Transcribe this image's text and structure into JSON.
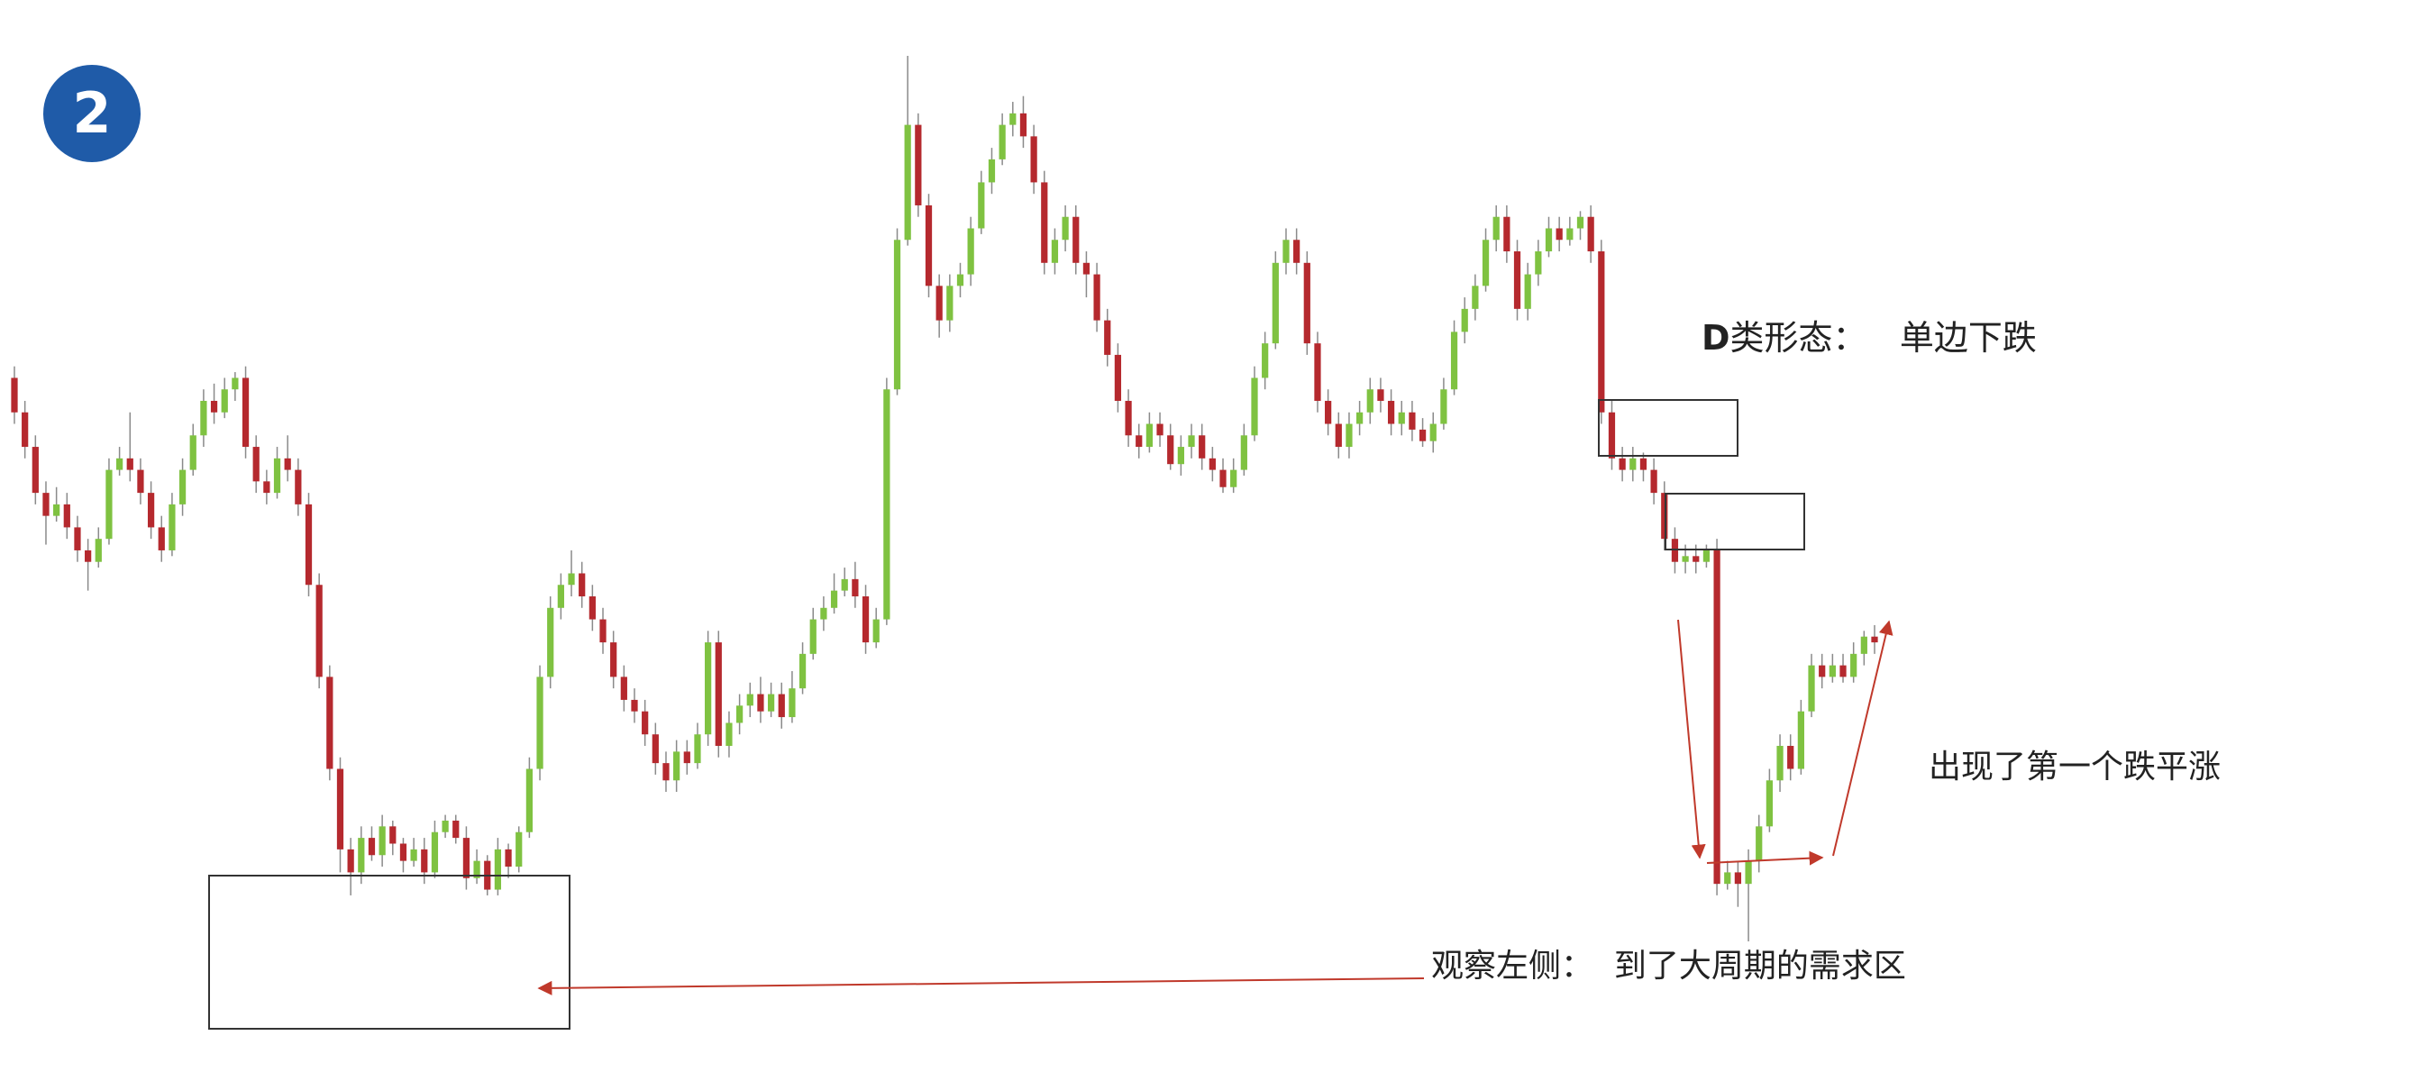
{
  "badge": "2",
  "annotations": {
    "pattern_type_prefix": "D",
    "pattern_type_rest": "类形态：",
    "pattern_name": "单边下跌",
    "first_signal": "出现了第一个跌平涨",
    "observe_left": "观察左侧：",
    "demand_zone": "到了大周期的需求区"
  },
  "colors": {
    "bull": "#7fc241",
    "bear": "#b5292e",
    "box": "#333333",
    "arrow": "#c0392b",
    "badge": "#1f5ba8"
  },
  "chart_data": {
    "type": "candlestick",
    "x_axis": "none",
    "y_axis": "none",
    "grid": false,
    "ohlc": [
      [
        92,
        86,
        94,
        84
      ],
      [
        86,
        80,
        88,
        78
      ],
      [
        80,
        72,
        82,
        70
      ],
      [
        72,
        68,
        74,
        63
      ],
      [
        68,
        70,
        73,
        67
      ],
      [
        70,
        66,
        72,
        64
      ],
      [
        66,
        62,
        68,
        60
      ],
      [
        62,
        60,
        64,
        55
      ],
      [
        60,
        64,
        66,
        59
      ],
      [
        64,
        76,
        78,
        63
      ],
      [
        76,
        78,
        80,
        75
      ],
      [
        78,
        76,
        86,
        74
      ],
      [
        76,
        72,
        78,
        70
      ],
      [
        72,
        66,
        74,
        64
      ],
      [
        66,
        62,
        68,
        60
      ],
      [
        62,
        70,
        72,
        61
      ],
      [
        70,
        76,
        78,
        68
      ],
      [
        76,
        82,
        84,
        75
      ],
      [
        82,
        88,
        90,
        80
      ],
      [
        88,
        86,
        91,
        84
      ],
      [
        86,
        90,
        92,
        85
      ],
      [
        90,
        92,
        93,
        88
      ],
      [
        92,
        80,
        94,
        78
      ],
      [
        80,
        74,
        82,
        72
      ],
      [
        74,
        72,
        76,
        70
      ],
      [
        72,
        78,
        80,
        71
      ],
      [
        78,
        76,
        82,
        74
      ],
      [
        76,
        70,
        78,
        68
      ],
      [
        70,
        56,
        72,
        54
      ],
      [
        56,
        40,
        58,
        38
      ],
      [
        40,
        24,
        42,
        22
      ],
      [
        24,
        10,
        26,
        6
      ],
      [
        10,
        6,
        12,
        2
      ],
      [
        6,
        12,
        14,
        4
      ],
      [
        12,
        9,
        14,
        8
      ],
      [
        9,
        14,
        16,
        7
      ],
      [
        14,
        11,
        15,
        9
      ],
      [
        11,
        8,
        12,
        6
      ],
      [
        8,
        10,
        12,
        7
      ],
      [
        10,
        6,
        12,
        4
      ],
      [
        6,
        13,
        15,
        5
      ],
      [
        13,
        15,
        16,
        12
      ],
      [
        15,
        12,
        16,
        11
      ],
      [
        12,
        5,
        14,
        3
      ],
      [
        5,
        8,
        10,
        4
      ],
      [
        8,
        3,
        9,
        2
      ],
      [
        3,
        10,
        12,
        2
      ],
      [
        10,
        7,
        11,
        5
      ],
      [
        7,
        13,
        14,
        6
      ],
      [
        13,
        24,
        26,
        12
      ],
      [
        24,
        40,
        42,
        22
      ],
      [
        40,
        52,
        54,
        38
      ],
      [
        52,
        56,
        58,
        50
      ],
      [
        56,
        58,
        62,
        54
      ],
      [
        58,
        54,
        60,
        52
      ],
      [
        54,
        50,
        56,
        48
      ],
      [
        50,
        46,
        52,
        44
      ],
      [
        46,
        40,
        48,
        38
      ],
      [
        40,
        36,
        42,
        34
      ],
      [
        36,
        34,
        38,
        32
      ],
      [
        34,
        30,
        36,
        28
      ],
      [
        30,
        25,
        32,
        23
      ],
      [
        25,
        22,
        27,
        20
      ],
      [
        22,
        27,
        29,
        20
      ],
      [
        27,
        25,
        29,
        23
      ],
      [
        25,
        30,
        32,
        24
      ],
      [
        30,
        46,
        48,
        28
      ],
      [
        46,
        28,
        48,
        26
      ],
      [
        28,
        32,
        34,
        26
      ],
      [
        32,
        35,
        37,
        30
      ],
      [
        35,
        37,
        39,
        33
      ],
      [
        37,
        34,
        40,
        32
      ],
      [
        34,
        37,
        39,
        33
      ],
      [
        37,
        33,
        39,
        31
      ],
      [
        33,
        38,
        41,
        32
      ],
      [
        38,
        44,
        46,
        37
      ],
      [
        44,
        50,
        52,
        43
      ],
      [
        50,
        52,
        54,
        48
      ],
      [
        52,
        55,
        58,
        51
      ],
      [
        55,
        57,
        59,
        54
      ],
      [
        57,
        54,
        60,
        52
      ],
      [
        54,
        46,
        56,
        44
      ],
      [
        46,
        50,
        52,
        45
      ],
      [
        50,
        90,
        92,
        49
      ],
      [
        90,
        116,
        118,
        89
      ],
      [
        116,
        136,
        148,
        115
      ],
      [
        136,
        122,
        138,
        120
      ],
      [
        122,
        108,
        124,
        106
      ],
      [
        108,
        102,
        110,
        99
      ],
      [
        102,
        108,
        110,
        100
      ],
      [
        108,
        110,
        112,
        106
      ],
      [
        110,
        118,
        120,
        108
      ],
      [
        118,
        126,
        128,
        117
      ],
      [
        126,
        130,
        132,
        124
      ],
      [
        130,
        136,
        138,
        129
      ],
      [
        136,
        138,
        140,
        134
      ],
      [
        138,
        134,
        141,
        132
      ],
      [
        134,
        126,
        136,
        124
      ],
      [
        126,
        112,
        128,
        110
      ],
      [
        112,
        116,
        118,
        110
      ],
      [
        116,
        120,
        122,
        114
      ],
      [
        120,
        112,
        122,
        110
      ],
      [
        112,
        110,
        114,
        106
      ],
      [
        110,
        102,
        112,
        100
      ],
      [
        102,
        96,
        104,
        94
      ],
      [
        96,
        88,
        98,
        86
      ],
      [
        88,
        82,
        90,
        80
      ],
      [
        82,
        80,
        84,
        78
      ],
      [
        80,
        84,
        86,
        79
      ],
      [
        84,
        82,
        86,
        80
      ],
      [
        82,
        77,
        84,
        76
      ],
      [
        77,
        80,
        82,
        75
      ],
      [
        80,
        82,
        84,
        78
      ],
      [
        82,
        78,
        84,
        76
      ],
      [
        78,
        76,
        80,
        74
      ],
      [
        76,
        73,
        78,
        72
      ],
      [
        73,
        76,
        78,
        72
      ],
      [
        76,
        82,
        84,
        75
      ],
      [
        82,
        92,
        94,
        81
      ],
      [
        92,
        98,
        100,
        90
      ],
      [
        98,
        112,
        114,
        97
      ],
      [
        112,
        116,
        118,
        110
      ],
      [
        116,
        112,
        118,
        110
      ],
      [
        112,
        98,
        114,
        96
      ],
      [
        98,
        88,
        100,
        86
      ],
      [
        88,
        84,
        90,
        82
      ],
      [
        84,
        80,
        86,
        78
      ],
      [
        80,
        84,
        86,
        78
      ],
      [
        84,
        86,
        88,
        82
      ],
      [
        86,
        90,
        92,
        84
      ],
      [
        90,
        88,
        92,
        86
      ],
      [
        88,
        84,
        90,
        82
      ],
      [
        84,
        86,
        88,
        82
      ],
      [
        86,
        83,
        88,
        81
      ],
      [
        83,
        81,
        85,
        80
      ],
      [
        81,
        84,
        86,
        79
      ],
      [
        84,
        90,
        92,
        83
      ],
      [
        90,
        100,
        102,
        89
      ],
      [
        100,
        104,
        106,
        98
      ],
      [
        104,
        108,
        110,
        102
      ],
      [
        108,
        116,
        118,
        107
      ],
      [
        116,
        120,
        122,
        114
      ],
      [
        120,
        114,
        122,
        112
      ],
      [
        114,
        104,
        116,
        102
      ],
      [
        104,
        110,
        112,
        102
      ],
      [
        110,
        114,
        116,
        108
      ],
      [
        114,
        118,
        120,
        113
      ],
      [
        118,
        116,
        120,
        114
      ],
      [
        116,
        118,
        120,
        115
      ],
      [
        118,
        120,
        121,
        116
      ],
      [
        120,
        114,
        122,
        112
      ],
      [
        114,
        86,
        116,
        84
      ],
      [
        86,
        78,
        88,
        76
      ],
      [
        78,
        76,
        80,
        74
      ],
      [
        76,
        78,
        80,
        74
      ],
      [
        78,
        76,
        79,
        74
      ],
      [
        76,
        72,
        78,
        70
      ],
      [
        72,
        64,
        74,
        62
      ],
      [
        64,
        60,
        66,
        58
      ],
      [
        60,
        61,
        63,
        58
      ],
      [
        61,
        60,
        63,
        58
      ],
      [
        60,
        62,
        63,
        59
      ],
      [
        62,
        4,
        64,
        2
      ],
      [
        4,
        6,
        8,
        3
      ],
      [
        6,
        4,
        8,
        0
      ],
      [
        4,
        8,
        10,
        -6
      ],
      [
        8,
        14,
        16,
        6
      ],
      [
        14,
        22,
        24,
        13
      ],
      [
        22,
        28,
        30,
        20
      ],
      [
        28,
        24,
        30,
        22
      ],
      [
        24,
        34,
        36,
        23
      ],
      [
        34,
        42,
        44,
        33
      ],
      [
        42,
        40,
        44,
        38
      ],
      [
        40,
        42,
        44,
        39
      ],
      [
        42,
        40,
        44,
        39
      ],
      [
        40,
        44,
        46,
        39
      ],
      [
        44,
        47,
        48,
        42
      ],
      [
        47,
        46,
        49,
        44
      ]
    ]
  }
}
